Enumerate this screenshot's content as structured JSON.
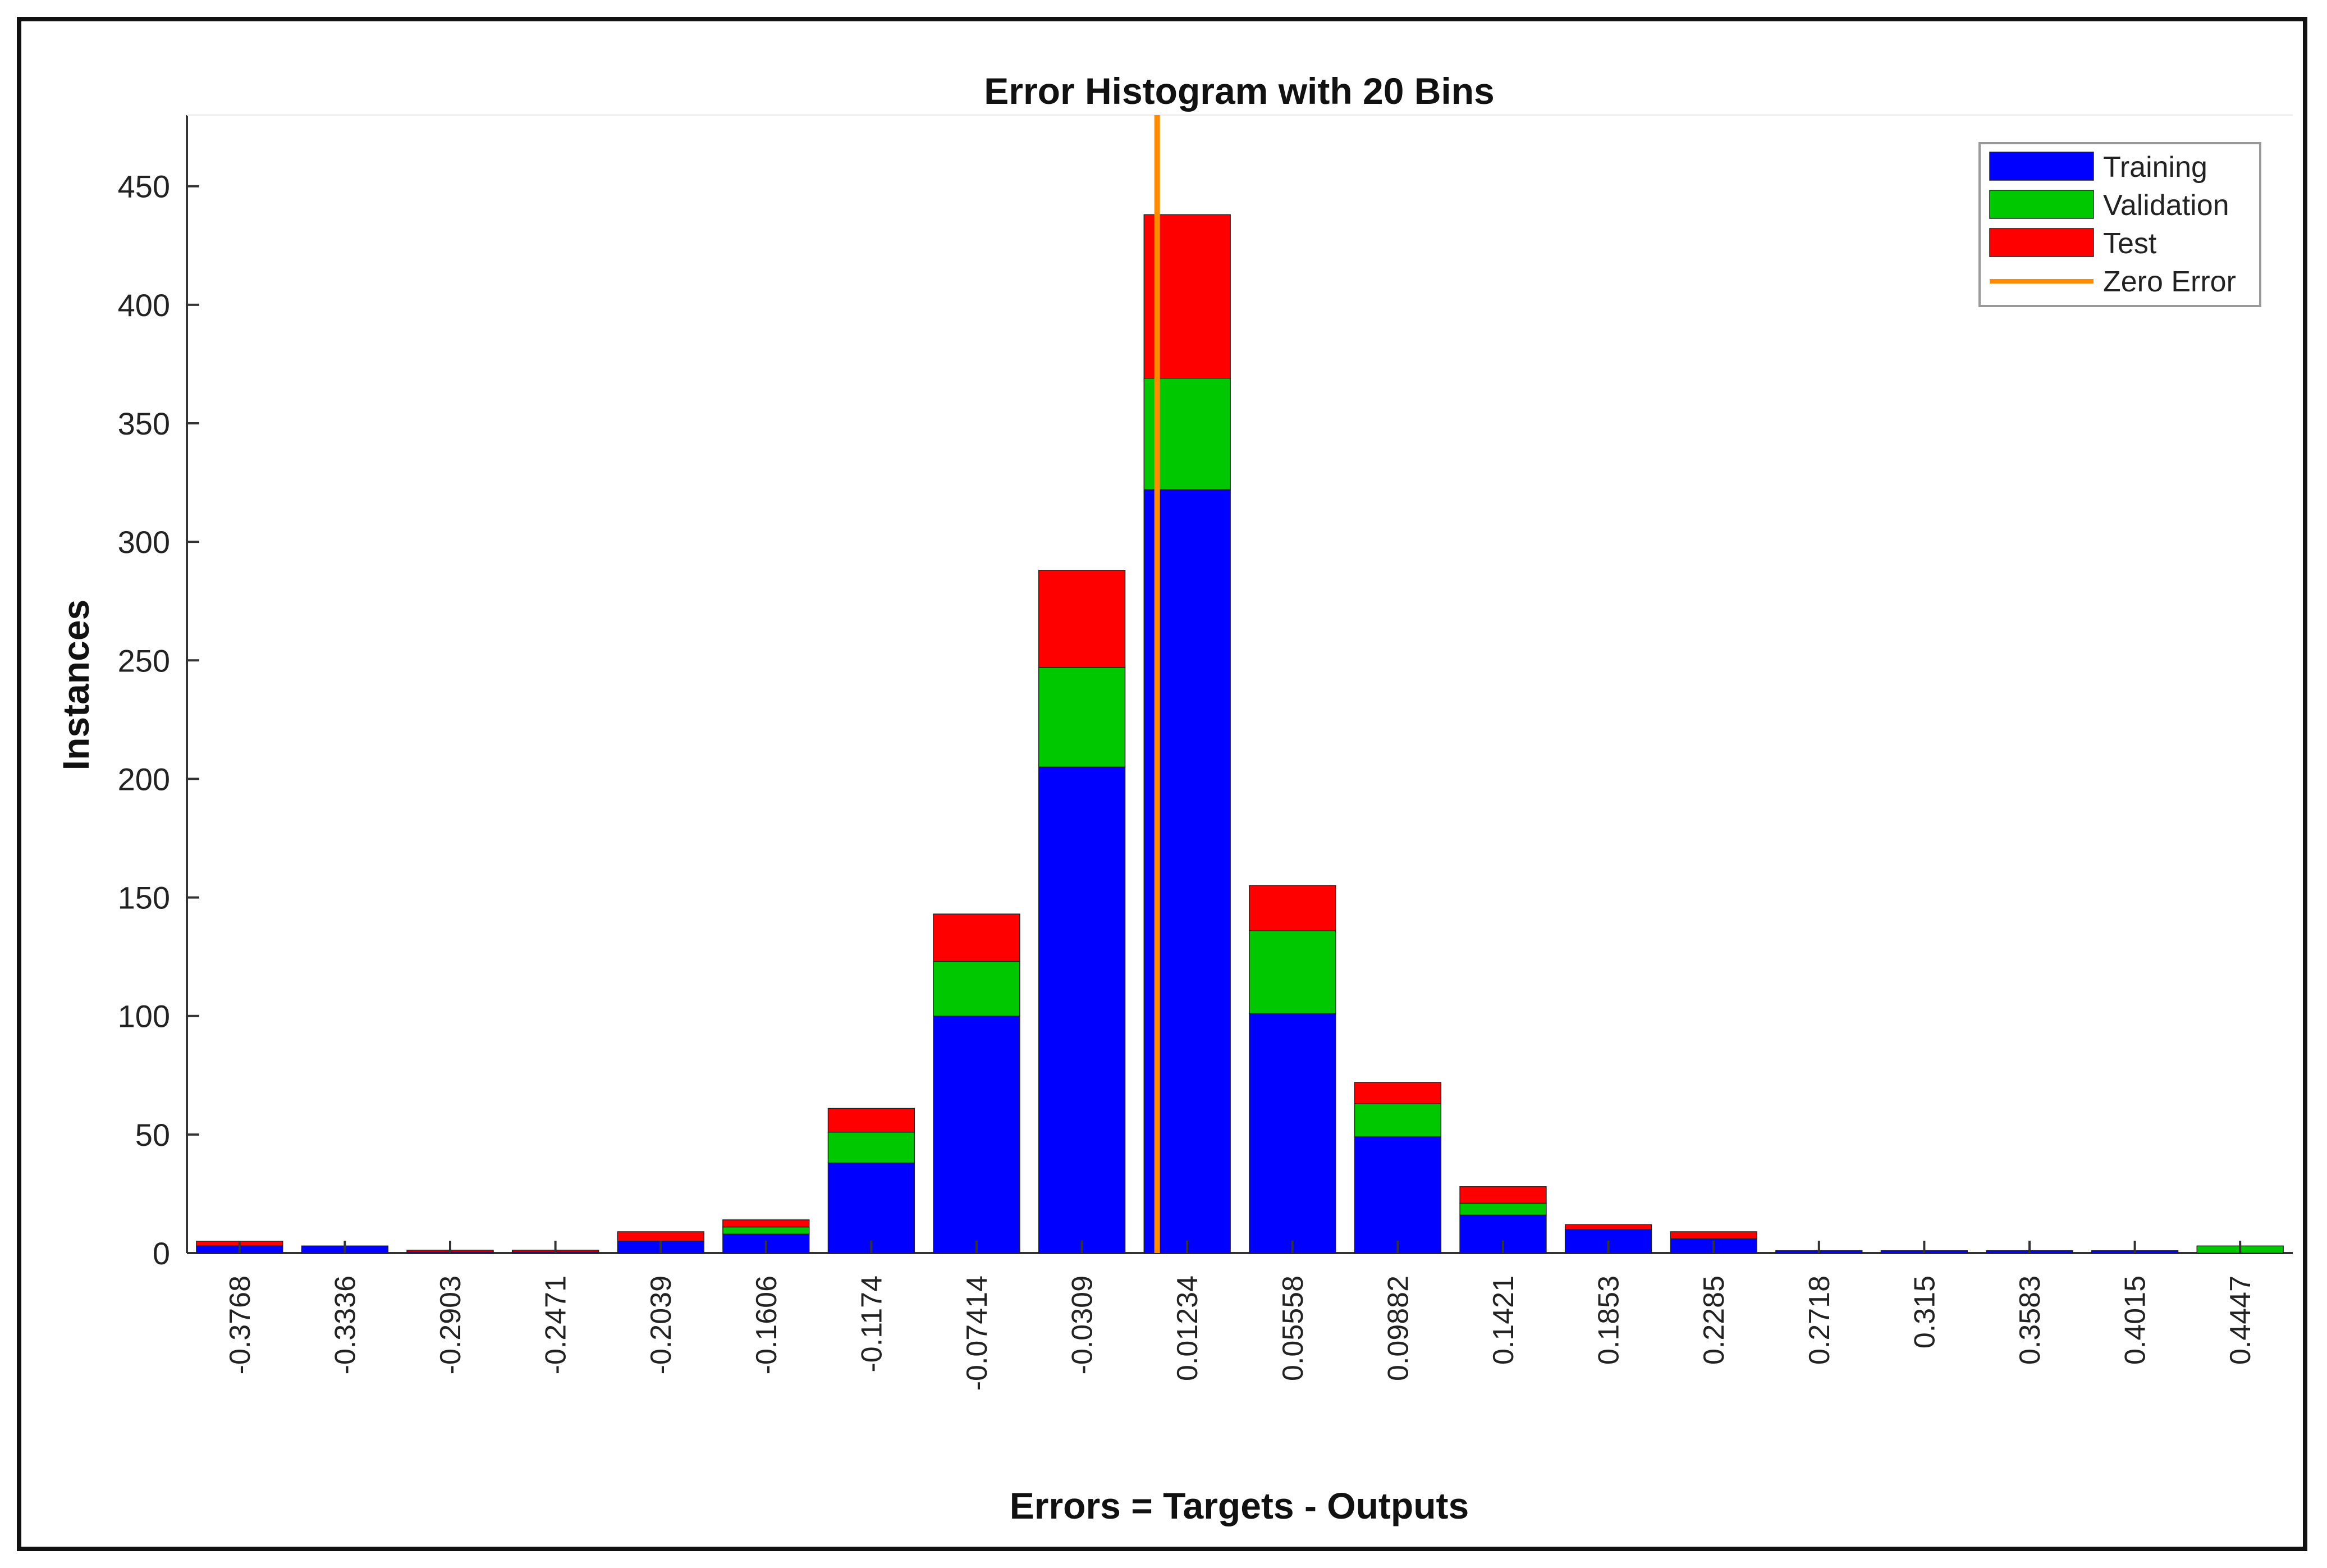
{
  "chart_data": {
    "type": "bar",
    "stacked": true,
    "title": "Error Histogram with 20 Bins",
    "xlabel": "Errors = Targets - Outputs",
    "ylabel": "Instances",
    "ylim": [
      0,
      480
    ],
    "yticks": [
      0,
      50,
      100,
      150,
      200,
      250,
      300,
      350,
      400,
      450
    ],
    "grid": false,
    "legend_position": "top-right",
    "categories": [
      "-0.3768",
      "-0.3336",
      "-0.2903",
      "-0.2471",
      "-0.2039",
      "-0.1606",
      "-0.1174",
      "-0.07414",
      "-0.0309",
      "0.01234",
      "0.05558",
      "0.09882",
      "0.1421",
      "0.1853",
      "0.2285",
      "0.2718",
      "0.315",
      "0.3583",
      "0.4015",
      "0.4447"
    ],
    "series": [
      {
        "name": "Training",
        "color": "#0000ff",
        "values": [
          3,
          3,
          0.5,
          0.5,
          5,
          8,
          38,
          100,
          205,
          322,
          101,
          49,
          16,
          10,
          6,
          1,
          1,
          1,
          1,
          0
        ]
      },
      {
        "name": "Validation",
        "color": "#00c800",
        "values": [
          0,
          0,
          0,
          0,
          0,
          3,
          13,
          23,
          42,
          47,
          35,
          14,
          5,
          0,
          0,
          0,
          0,
          0,
          0,
          3
        ]
      },
      {
        "name": "Test",
        "color": "#ff0000",
        "values": [
          2,
          0,
          0.5,
          0.5,
          4,
          3,
          10,
          20,
          41,
          69,
          19,
          9,
          7,
          2,
          3,
          0,
          0,
          0,
          0,
          0
        ]
      }
    ],
    "zero_error": {
      "label": "Zero Error",
      "color": "#ff8c00",
      "x_value": 0
    }
  }
}
